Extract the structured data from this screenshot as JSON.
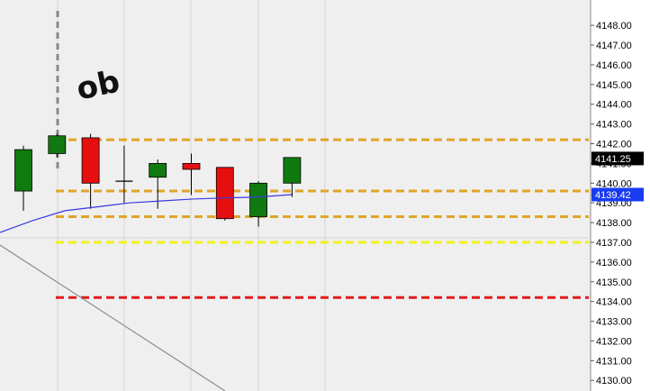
{
  "colors": {
    "plot_background": "#efefef",
    "axis_background": "#ffffff",
    "grid": "#d6d6d6",
    "up_candle": "#107a10",
    "down_candle": "#e60f0f",
    "wick": "#000000",
    "moving_average": "#3a3ae0",
    "trendline": "#8c8c8c",
    "session_marker": "#888888",
    "level_orange": "#e0a528",
    "level_yellow": "#f2f21a",
    "level_red": "#e31b1b",
    "last_price_tag_bg": "#000000",
    "last_price_tag_fg": "#ffffff",
    "ma_tag_bg": "#1a3cf0",
    "ma_tag_fg": "#ffffff"
  },
  "annotation": {
    "text": "ob"
  },
  "chart_data": {
    "type": "candlestick",
    "ylim": [
      4129.6,
      4148.6
    ],
    "y_ticks": [
      "4148.00",
      "4147.00",
      "4146.00",
      "4145.00",
      "4144.00",
      "4143.00",
      "4142.00",
      "4141.00",
      "4140.00",
      "4139.00",
      "4138.00",
      "4137.00",
      "4136.00",
      "4135.00",
      "4134.00",
      "4133.00",
      "4132.00",
      "4131.00",
      "4130.00"
    ],
    "last_price": {
      "value": 4141.25,
      "label": "4141.25"
    },
    "ma_value": {
      "value": 4139.42,
      "label": "4139.42"
    },
    "candles": [
      {
        "open": 4139.6,
        "high": 4141.9,
        "low": 4138.6,
        "close": 4141.7
      },
      {
        "open": 4141.5,
        "high": 4142.5,
        "low": 4141.3,
        "close": 4142.4
      },
      {
        "open": 4142.3,
        "high": 4142.5,
        "low": 4138.7,
        "close": 4140.0
      },
      {
        "open": 4140.1,
        "high": 4141.9,
        "low": 4139.0,
        "close": 4140.1
      },
      {
        "open": 4140.3,
        "high": 4141.2,
        "low": 4138.7,
        "close": 4141.0
      },
      {
        "open": 4141.0,
        "high": 4141.5,
        "low": 4139.4,
        "close": 4140.7
      },
      {
        "open": 4140.8,
        "high": 4140.8,
        "low": 4138.1,
        "close": 4138.2
      },
      {
        "open": 4138.3,
        "high": 4140.1,
        "low": 4137.8,
        "close": 4140.0
      },
      {
        "open": 4140.0,
        "high": 4141.3,
        "low": 4139.3,
        "close": 4141.3
      }
    ],
    "moving_average": [
      4137.5,
      4138.1,
      4138.6,
      4138.8,
      4139.0,
      4139.1,
      4139.2,
      4139.25,
      4139.3,
      4139.42
    ],
    "levels": [
      {
        "price": 4142.2,
        "color_key": "level_orange"
      },
      {
        "price": 4139.6,
        "color_key": "level_orange"
      },
      {
        "price": 4138.3,
        "color_key": "level_orange"
      },
      {
        "price": 4137.0,
        "color_key": "level_yellow"
      },
      {
        "price": 4134.2,
        "color_key": "level_red"
      }
    ]
  }
}
